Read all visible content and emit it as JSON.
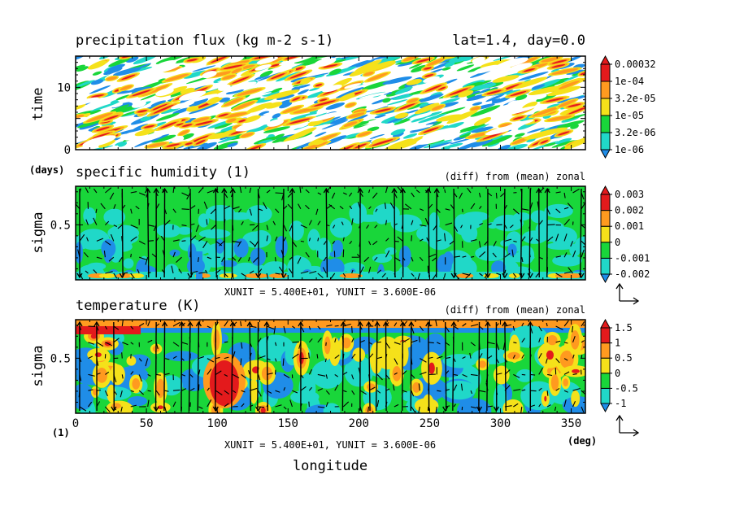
{
  "figure": {
    "top_right": "lat=1.4, day=0.0",
    "x_label": "longitude",
    "x_unit": "(deg)",
    "unit_note": "XUNIT = 5.400E+01, YUNIT = 3.600E-06"
  },
  "colors": {
    "red": "#e31a1c",
    "orange": "#ff9a1f",
    "yellow": "#f5e11a",
    "green": "#19d63a",
    "cyan": "#20d8c8",
    "blue": "#1f8de8",
    "white": "#ffffff",
    "arrow": "#000000"
  },
  "chart_data": [
    {
      "type": "heatmap",
      "title": "precipitation flux (kg m-2 s-1)",
      "ylabel": "time",
      "y_unit": "(days)",
      "xlim": [
        0,
        360
      ],
      "ylim": [
        0,
        15
      ],
      "x_ticks": [
        0,
        50,
        100,
        150,
        200,
        250,
        300,
        350
      ],
      "y_ticks": [
        0,
        10
      ],
      "colorbar": {
        "labels": [
          "1e-06",
          "3.2e-06",
          "1e-05",
          "3.2e-05",
          "1e-04",
          "0.00032"
        ],
        "colors": [
          "#1f8de8",
          "#20d8c8",
          "#19d63a",
          "#f5e11a",
          "#ff9a1f",
          "#e31a1c"
        ]
      },
      "description_values": "random precipitation field shown as filled contours (visual texture)"
    },
    {
      "type": "heatmap",
      "title": "specific humidity (1)",
      "subtitle": "(diff) from (mean) zonal",
      "ylabel": "sigma",
      "xlim": [
        0,
        360
      ],
      "y_ticks": [
        0.5
      ],
      "x_ticks": [
        0,
        50,
        100,
        150,
        200,
        250,
        300,
        350
      ],
      "vectors": true,
      "colorbar": {
        "labels": [
          "-0.002",
          "-0.001",
          "0",
          "0.001",
          "0.002",
          "0.003"
        ],
        "colors": [
          "#1f8de8",
          "#20d8c8",
          "#19d63a",
          "#f5e11a",
          "#ff9a1f",
          "#e31a1c"
        ]
      }
    },
    {
      "type": "heatmap",
      "title": "temperature (K)",
      "subtitle": "(diff) from (mean) zonal",
      "ylabel": "sigma",
      "y_unit": "(1)",
      "xlim": [
        0,
        360
      ],
      "y_ticks": [
        0.5
      ],
      "x_ticks": [
        0,
        50,
        100,
        150,
        200,
        250,
        300,
        350
      ],
      "x_tick_labels": [
        "0",
        "50",
        "100",
        "150",
        "200",
        "250",
        "300",
        "350"
      ],
      "vectors": true,
      "colorbar": {
        "labels": [
          "-1",
          "-0.5",
          "0",
          "0.5",
          "1",
          "1.5"
        ],
        "colors": [
          "#1f8de8",
          "#20d8c8",
          "#19d63a",
          "#f5e11a",
          "#ff9a1f",
          "#e31a1c"
        ]
      }
    }
  ]
}
